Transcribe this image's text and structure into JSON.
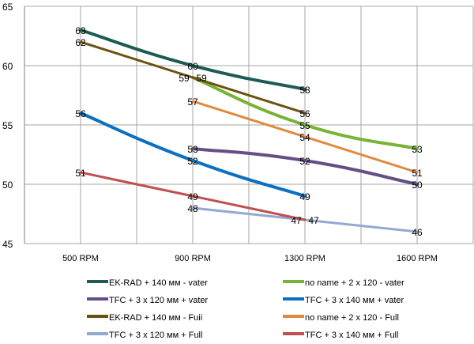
{
  "chart_data": {
    "type": "line",
    "categories": [
      "500  RPM",
      "900 RPM",
      "1300  RPM",
      "1600  RPM"
    ],
    "ylim": [
      45,
      65
    ],
    "yticks": [
      45,
      50,
      55,
      60,
      65
    ],
    "grid": true,
    "legend_position": "bottom",
    "series": [
      {
        "name": "EK-RAD  + 140 мм - vater",
        "color": "#1d5b55",
        "values": [
          63,
          60,
          58,
          null
        ]
      },
      {
        "name": "no name  + 2 x 120 - vater",
        "color": "#78b236",
        "values": [
          null,
          59,
          55,
          53
        ]
      },
      {
        "name": "TFC + 3 x 120 мм + vater",
        "color": "#644e85",
        "values": [
          null,
          53,
          52,
          50
        ]
      },
      {
        "name": "TFC + 3 x 140 мм + vater",
        "color": "#0a70c2",
        "values": [
          56,
          52,
          49,
          null
        ]
      },
      {
        "name": "EK-RAD  + 140 мм -  Fuii",
        "color": "#6a5212",
        "values": [
          62,
          59,
          56,
          null
        ]
      },
      {
        "name": "no name  + 2 x 120 -  Full",
        "color": "#e0893d",
        "values": [
          null,
          57,
          54,
          51
        ]
      },
      {
        "name": "TFC + 3 x 120 мм +  Full",
        "color": "#94a9d1",
        "values": [
          null,
          48,
          47,
          46
        ]
      },
      {
        "name": "TFC + 3 x 140 мм +  Full",
        "color": "#c0504d",
        "values": [
          51,
          49,
          47,
          null
        ]
      }
    ]
  }
}
